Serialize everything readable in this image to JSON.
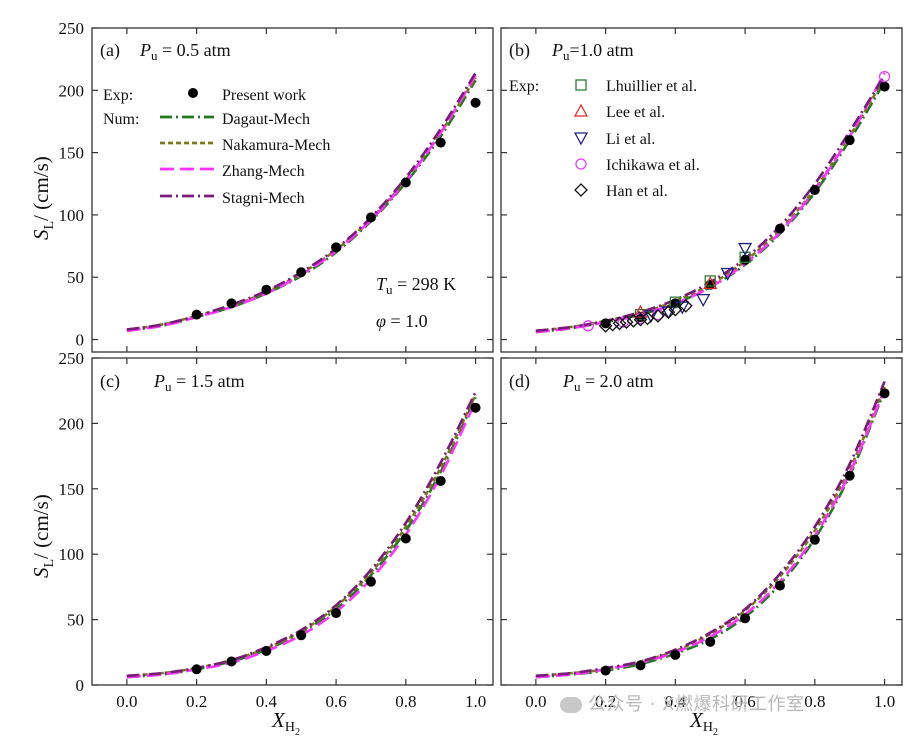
{
  "chart_data": [
    {
      "type": "line",
      "panel_label": "(a)",
      "pressure": "0.5 atm",
      "xlim": [
        -0.1,
        1.05
      ],
      "ylim": [
        -10,
        250
      ],
      "xticks": [
        0.0,
        0.2,
        0.4,
        0.6,
        0.8,
        1.0
      ],
      "yticks": [
        0,
        50,
        100,
        150,
        200,
        250
      ],
      "ylabel": "SL / (cm/s)",
      "conditions": [
        "Tu = 298 K",
        "φ = 1.0"
      ],
      "experiments": [
        {
          "name": "Present work",
          "marker": "filled-circle",
          "x": [
            0.2,
            0.3,
            0.4,
            0.5,
            0.6,
            0.7,
            0.8,
            0.9,
            1.0
          ],
          "y": [
            20,
            29,
            40,
            54,
            74,
            98,
            126,
            158,
            190
          ]
        }
      ],
      "series": [
        {
          "name": "Dagaut-Mech",
          "x": [
            0.0,
            0.1,
            0.2,
            0.3,
            0.4,
            0.5,
            0.6,
            0.7,
            0.8,
            0.9,
            1.0
          ],
          "y": [
            7,
            11,
            18,
            26,
            37,
            51,
            70,
            95,
            126,
            163,
            208
          ]
        },
        {
          "name": "Nakamura-Mech",
          "x": [
            0.0,
            0.1,
            0.2,
            0.3,
            0.4,
            0.5,
            0.6,
            0.7,
            0.8,
            0.9,
            1.0
          ],
          "y": [
            8,
            12,
            19,
            27,
            38,
            53,
            72,
            97,
            128,
            166,
            210
          ]
        },
        {
          "name": "Zhang-Mech",
          "x": [
            0.0,
            0.1,
            0.2,
            0.3,
            0.4,
            0.5,
            0.6,
            0.7,
            0.8,
            0.9,
            1.0
          ],
          "y": [
            7,
            11,
            18,
            26,
            37,
            52,
            71,
            96,
            127,
            166,
            212
          ]
        },
        {
          "name": "Stagni-Mech",
          "x": [
            0.0,
            0.1,
            0.2,
            0.3,
            0.4,
            0.5,
            0.6,
            0.7,
            0.8,
            0.9,
            1.0
          ],
          "y": [
            8,
            12,
            19,
            28,
            39,
            54,
            73,
            98,
            130,
            169,
            214
          ]
        }
      ]
    },
    {
      "type": "line",
      "panel_label": "(b)",
      "pressure": "1.0 atm",
      "xlim": [
        -0.1,
        1.05
      ],
      "ylim": [
        -10,
        250
      ],
      "xticks": [
        0.0,
        0.2,
        0.4,
        0.6,
        0.8,
        1.0
      ],
      "yticks": [
        0,
        50,
        100,
        150,
        200,
        250
      ],
      "experiments": [
        {
          "name": "Present work",
          "marker": "filled-circle",
          "x": [
            0.2,
            0.3,
            0.4,
            0.5,
            0.6,
            0.7,
            0.8,
            0.9,
            1.0
          ],
          "y": [
            13,
            18,
            29,
            44,
            64,
            89,
            120,
            160,
            203
          ]
        },
        {
          "name": "Lhuillier et al.",
          "marker": "square",
          "x": [
            0.3,
            0.4,
            0.5,
            0.6
          ],
          "y": [
            20,
            30,
            47,
            66
          ]
        },
        {
          "name": "Lee et al.",
          "marker": "triangle-up",
          "x": [
            0.3,
            0.5
          ],
          "y": [
            22,
            45
          ]
        },
        {
          "name": "Li et al.",
          "marker": "triangle-down",
          "x": [
            0.33,
            0.38,
            0.42,
            0.48,
            0.55,
            0.6
          ],
          "y": [
            19,
            22,
            26,
            32,
            53,
            73
          ]
        },
        {
          "name": "Ichikawa et al.",
          "marker": "open-circle",
          "x": [
            0.15,
            0.25,
            0.3,
            0.35,
            1.0
          ],
          "y": [
            11,
            14,
            17,
            20,
            211
          ]
        },
        {
          "name": "Han et al.",
          "marker": "diamond",
          "x": [
            0.2,
            0.22,
            0.24,
            0.26,
            0.28,
            0.3,
            0.32,
            0.35,
            0.38,
            0.4,
            0.43
          ],
          "y": [
            11,
            12,
            13,
            14,
            15,
            16,
            17,
            19,
            22,
            24,
            27
          ]
        }
      ],
      "series": [
        {
          "name": "Dagaut-Mech",
          "x": [
            0.0,
            0.1,
            0.2,
            0.3,
            0.4,
            0.5,
            0.6,
            0.7,
            0.8,
            0.9,
            1.0
          ],
          "y": [
            6,
            9,
            14,
            20,
            29,
            42,
            60,
            85,
            118,
            160,
            207
          ]
        },
        {
          "name": "Nakamura-Mech",
          "x": [
            0.0,
            0.1,
            0.2,
            0.3,
            0.4,
            0.5,
            0.6,
            0.7,
            0.8,
            0.9,
            1.0
          ],
          "y": [
            7,
            10,
            15,
            21,
            31,
            44,
            63,
            88,
            121,
            163,
            210
          ]
        },
        {
          "name": "Zhang-Mech",
          "x": [
            0.0,
            0.1,
            0.2,
            0.3,
            0.4,
            0.5,
            0.6,
            0.7,
            0.8,
            0.9,
            1.0
          ],
          "y": [
            6,
            9,
            14,
            20,
            29,
            42,
            61,
            86,
            120,
            163,
            214
          ]
        },
        {
          "name": "Stagni-Mech",
          "x": [
            0.0,
            0.1,
            0.2,
            0.3,
            0.4,
            0.5,
            0.6,
            0.7,
            0.8,
            0.9,
            1.0
          ],
          "y": [
            7,
            10,
            15,
            22,
            32,
            46,
            65,
            91,
            125,
            167,
            212
          ]
        }
      ]
    },
    {
      "type": "line",
      "panel_label": "(c)",
      "pressure": "1.5 atm",
      "xlim": [
        -0.1,
        1.05
      ],
      "ylim": [
        0,
        250
      ],
      "xticks": [
        0.0,
        0.2,
        0.4,
        0.6,
        0.8,
        1.0
      ],
      "yticks": [
        0,
        50,
        100,
        150,
        200,
        250
      ],
      "xlabel": "XH2",
      "ylabel": "SL / (cm/s)",
      "experiments": [
        {
          "name": "Present work",
          "marker": "filled-circle",
          "x": [
            0.2,
            0.3,
            0.4,
            0.5,
            0.6,
            0.7,
            0.8,
            0.9,
            1.0
          ],
          "y": [
            12,
            18,
            26,
            38,
            55,
            79,
            112,
            156,
            212
          ]
        }
      ],
      "series": [
        {
          "name": "Dagaut-Mech",
          "x": [
            0.0,
            0.1,
            0.2,
            0.3,
            0.4,
            0.5,
            0.6,
            0.7,
            0.8,
            0.9,
            1.0
          ],
          "y": [
            6,
            8,
            12,
            18,
            27,
            40,
            58,
            84,
            118,
            163,
            220
          ]
        },
        {
          "name": "Nakamura-Mech",
          "x": [
            0.0,
            0.1,
            0.2,
            0.3,
            0.4,
            0.5,
            0.6,
            0.7,
            0.8,
            0.9,
            1.0
          ],
          "y": [
            7,
            9,
            13,
            19,
            28,
            41,
            60,
            86,
            121,
            166,
            222
          ]
        },
        {
          "name": "Zhang-Mech",
          "x": [
            0.0,
            0.1,
            0.2,
            0.3,
            0.4,
            0.5,
            0.6,
            0.7,
            0.8,
            0.9,
            1.0
          ],
          "y": [
            6,
            8,
            12,
            17,
            26,
            38,
            56,
            81,
            115,
            160,
            217
          ]
        },
        {
          "name": "Stagni-Mech",
          "x": [
            0.0,
            0.1,
            0.2,
            0.3,
            0.4,
            0.5,
            0.6,
            0.7,
            0.8,
            0.9,
            1.0
          ],
          "y": [
            7,
            9,
            13,
            19,
            29,
            42,
            61,
            88,
            124,
            170,
            224
          ]
        }
      ]
    },
    {
      "type": "line",
      "panel_label": "(d)",
      "pressure": "2.0 atm",
      "xlim": [
        -0.1,
        1.05
      ],
      "ylim": [
        0,
        250
      ],
      "xticks": [
        0.0,
        0.2,
        0.4,
        0.6,
        0.8,
        1.0
      ],
      "yticks": [
        0,
        50,
        100,
        150,
        200,
        250
      ],
      "xlabel": "XH2",
      "experiments": [
        {
          "name": "Present work",
          "marker": "filled-circle",
          "x": [
            0.2,
            0.3,
            0.4,
            0.5,
            0.6,
            0.7,
            0.8,
            0.9,
            1.0
          ],
          "y": [
            11,
            15,
            23,
            33,
            51,
            76,
            111,
            160,
            223
          ]
        }
      ],
      "series": [
        {
          "name": "Dagaut-Mech",
          "x": [
            0.0,
            0.1,
            0.2,
            0.3,
            0.4,
            0.5,
            0.6,
            0.7,
            0.8,
            0.9,
            1.0
          ],
          "y": [
            6,
            8,
            11,
            16,
            24,
            35,
            52,
            77,
            112,
            160,
            225
          ]
        },
        {
          "name": "Nakamura-Mech",
          "x": [
            0.0,
            0.1,
            0.2,
            0.3,
            0.4,
            0.5,
            0.6,
            0.7,
            0.8,
            0.9,
            1.0
          ],
          "y": [
            7,
            9,
            12,
            18,
            26,
            39,
            57,
            83,
            118,
            165,
            228
          ]
        },
        {
          "name": "Zhang-Mech",
          "x": [
            0.0,
            0.1,
            0.2,
            0.3,
            0.4,
            0.5,
            0.6,
            0.7,
            0.8,
            0.9,
            1.0
          ],
          "y": [
            6,
            8,
            12,
            17,
            25,
            37,
            54,
            79,
            114,
            162,
            226
          ]
        },
        {
          "name": "Stagni-Mech",
          "x": [
            0.0,
            0.1,
            0.2,
            0.3,
            0.4,
            0.5,
            0.6,
            0.7,
            0.8,
            0.9,
            1.0
          ],
          "y": [
            7,
            9,
            13,
            18,
            27,
            40,
            58,
            85,
            121,
            169,
            232
          ]
        }
      ]
    }
  ],
  "legend": {
    "exp_label": "Exp:",
    "num_label": "Num:",
    "present_work": "Present work",
    "mechs": [
      "Dagaut-Mech",
      "Nakamura-Mech",
      "Zhang-Mech",
      "Stagni-Mech"
    ],
    "literature": [
      "Lhuillier et al.",
      "Lee et al.",
      "Li et al.",
      "Ichikawa et al.",
      "Han et al."
    ]
  },
  "styles": {
    "Dagaut-Mech": {
      "color": "#1f7a1f",
      "dash": "12 4 2 4"
    },
    "Nakamura-Mech": {
      "color": "#7a7a1a",
      "dash": "5 3"
    },
    "Zhang-Mech": {
      "color": "#ff33ff",
      "dash": "14 6"
    },
    "Stagni-Mech": {
      "color": "#7a1a7a",
      "dash": "12 4 2 4"
    },
    "Lhuillier et al.": {
      "color": "#2e7d32"
    },
    "Lee et al.": {
      "color": "#d32f2f"
    },
    "Li et al.": {
      "color": "#1a237e"
    },
    "Ichikawa et al.": {
      "color": "#e040fb"
    },
    "Han et al.": {
      "color": "#111111"
    }
  },
  "labels": {
    "panel_a_title": "(a)",
    "panel_b_title": "(b)",
    "panel_c_title": "(c)",
    "panel_d_title": "(d)",
    "pu_a": " = 0.5 atm",
    "pu_b": "=1.0 atm",
    "pu_c": " = 1.5 atm",
    "pu_d": " = 2.0 atm",
    "tu_value": " = 298 K",
    "phi_value": " = 1.0",
    "xlabel": "X",
    "xlabel_sub": "H",
    "xlabel_subsub": "2",
    "ylabel": "S",
    "ylabel_sub": "L",
    "ylabel_unit": "/ (cm/s)"
  },
  "watermark": "公众号 · X燃爆科研工作室"
}
